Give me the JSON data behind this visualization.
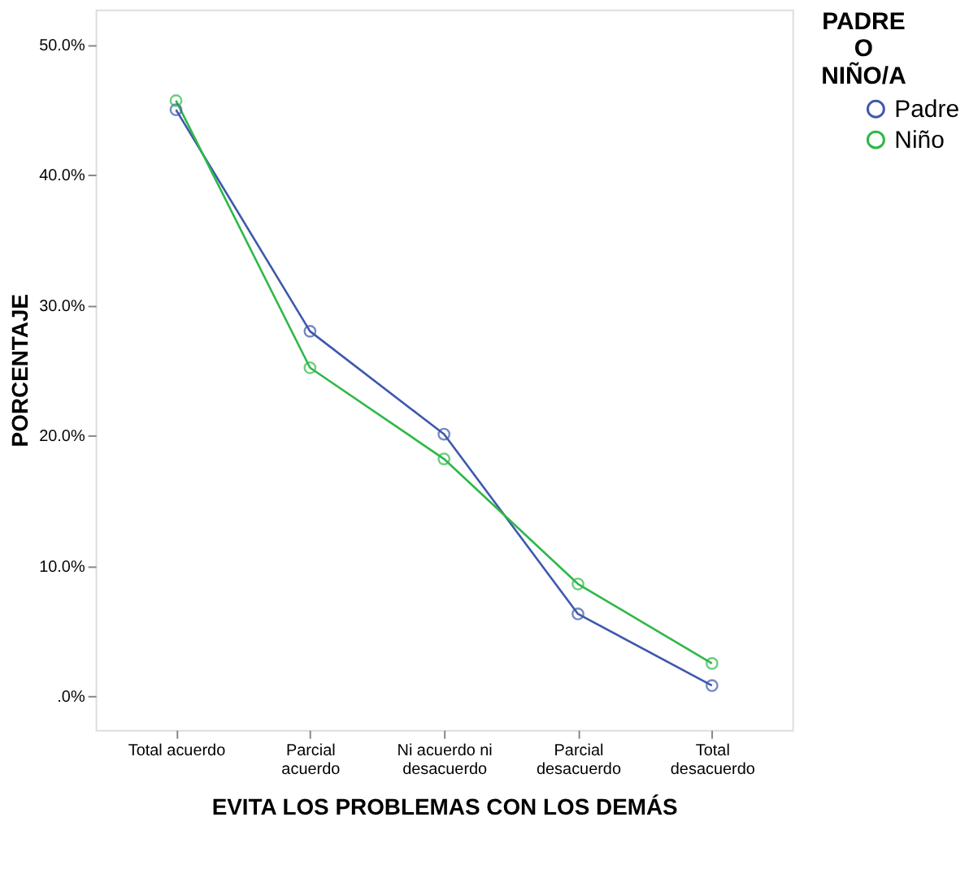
{
  "chart_data": {
    "type": "line",
    "xlabel": "EVITA LOS PROBLEMAS CON LOS DEMÁS",
    "ylabel": "PORCENTAJE",
    "legend_title": "PADRE O NIÑO/A",
    "legend": "right",
    "marker": "circle",
    "line_style": "solid",
    "grid": false,
    "categories": [
      "Total acuerdo",
      "Parcial\nacuerdo",
      "Ni acuerdo ni\ndesacuerdo",
      "Parcial\ndesacuerdo",
      "Total\ndesacuerdo"
    ],
    "ylim": [
      -2.6,
      52.7
    ],
    "yticks": [
      {
        "value": 0,
        "label": ".0%"
      },
      {
        "value": 10,
        "label": "10.0%"
      },
      {
        "value": 20,
        "label": "20.0%"
      },
      {
        "value": 30,
        "label": "30.0%"
      },
      {
        "value": 40,
        "label": "40.0%"
      },
      {
        "value": 50,
        "label": "50.0%"
      }
    ],
    "series": [
      {
        "name": "Padre",
        "color": "#3e58ac",
        "values": [
          45.0,
          28.0,
          20.1,
          6.3,
          0.8
        ]
      },
      {
        "name": "Niño",
        "color": "#2eb848",
        "values": [
          45.7,
          25.2,
          18.2,
          8.6,
          2.5
        ]
      }
    ]
  }
}
